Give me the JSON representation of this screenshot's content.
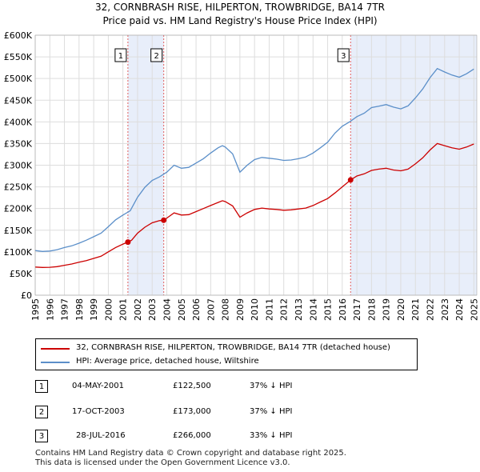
{
  "chart_data": {
    "type": "line",
    "title": "32, CORNBRASH RISE, HILPERTON, TROWBRIDGE, BA14 7TR",
    "subtitle": "Price paid vs. HM Land Registry's House Price Index (HPI)",
    "x_ticks": [
      "1995",
      "1996",
      "1997",
      "1998",
      "1999",
      "2000",
      "2001",
      "2002",
      "2003",
      "2004",
      "2005",
      "2006",
      "2007",
      "2008",
      "2009",
      "2010",
      "2011",
      "2012",
      "2013",
      "2014",
      "2015",
      "2016",
      "2017",
      "2018",
      "2019",
      "2020",
      "2021",
      "2022",
      "2023",
      "2024",
      "2025"
    ],
    "y_ticks": [
      "£0",
      "£50K",
      "£100K",
      "£150K",
      "£200K",
      "£250K",
      "£300K",
      "£350K",
      "£400K",
      "£450K",
      "£500K",
      "£550K",
      "£600K"
    ],
    "y_tick_values": [
      0,
      50000,
      100000,
      150000,
      200000,
      250000,
      300000,
      350000,
      400000,
      450000,
      500000,
      550000,
      600000
    ],
    "xlim": [
      1995,
      2025.2
    ],
    "ylim": [
      0,
      600000
    ],
    "grid": true,
    "series": [
      {
        "name": "32, CORNBRASH RISE, HILPERTON, TROWBRIDGE, BA14 7TR (detached house)",
        "color": "#cc0000",
        "points": [
          [
            1995.0,
            65000
          ],
          [
            1995.5,
            64000
          ],
          [
            1996.0,
            64500
          ],
          [
            1996.5,
            66000
          ],
          [
            1997.0,
            69000
          ],
          [
            1997.5,
            72000
          ],
          [
            1998.0,
            76000
          ],
          [
            1998.5,
            80000
          ],
          [
            1999.0,
            85000
          ],
          [
            1999.5,
            90000
          ],
          [
            2000.0,
            100000
          ],
          [
            2000.5,
            110000
          ],
          [
            2001.0,
            118000
          ],
          [
            2001.34,
            122500
          ],
          [
            2001.6,
            127000
          ],
          [
            2002.0,
            143000
          ],
          [
            2002.5,
            157000
          ],
          [
            2003.0,
            167000
          ],
          [
            2003.5,
            172000
          ],
          [
            2003.79,
            173000
          ],
          [
            2004.0,
            178000
          ],
          [
            2004.5,
            190000
          ],
          [
            2005.0,
            185000
          ],
          [
            2005.5,
            186000
          ],
          [
            2006.0,
            193000
          ],
          [
            2006.5,
            200000
          ],
          [
            2007.0,
            207000
          ],
          [
            2007.5,
            214000
          ],
          [
            2007.8,
            218000
          ],
          [
            2008.0,
            216000
          ],
          [
            2008.5,
            206000
          ],
          [
            2009.0,
            180000
          ],
          [
            2009.5,
            190000
          ],
          [
            2010.0,
            198000
          ],
          [
            2010.5,
            201000
          ],
          [
            2011.0,
            199000
          ],
          [
            2011.5,
            198000
          ],
          [
            2012.0,
            196000
          ],
          [
            2012.5,
            197000
          ],
          [
            2013.0,
            199000
          ],
          [
            2013.5,
            201000
          ],
          [
            2014.0,
            207000
          ],
          [
            2014.5,
            215000
          ],
          [
            2015.0,
            223000
          ],
          [
            2015.5,
            236000
          ],
          [
            2016.0,
            250000
          ],
          [
            2016.57,
            266000
          ],
          [
            2017.0,
            275000
          ],
          [
            2017.5,
            280000
          ],
          [
            2018.0,
            288000
          ],
          [
            2018.5,
            291000
          ],
          [
            2019.0,
            293000
          ],
          [
            2019.5,
            289000
          ],
          [
            2020.0,
            287000
          ],
          [
            2020.5,
            291000
          ],
          [
            2021.0,
            303000
          ],
          [
            2021.5,
            317000
          ],
          [
            2022.0,
            335000
          ],
          [
            2022.5,
            350000
          ],
          [
            2023.0,
            345000
          ],
          [
            2023.5,
            340000
          ],
          [
            2024.0,
            337000
          ],
          [
            2024.5,
            342000
          ],
          [
            2025.0,
            349000
          ]
        ]
      },
      {
        "name": "HPI: Average price, detached house, Wiltshire",
        "color": "#5b8fc9",
        "points": [
          [
            1995.0,
            103000
          ],
          [
            1995.5,
            101000
          ],
          [
            1996.0,
            102000
          ],
          [
            1996.5,
            105000
          ],
          [
            1997.0,
            110000
          ],
          [
            1997.5,
            114000
          ],
          [
            1998.0,
            120000
          ],
          [
            1998.5,
            127000
          ],
          [
            1999.0,
            135000
          ],
          [
            1999.5,
            143000
          ],
          [
            2000.0,
            158000
          ],
          [
            2000.5,
            174000
          ],
          [
            2001.0,
            185000
          ],
          [
            2001.5,
            195000
          ],
          [
            2002.0,
            226000
          ],
          [
            2002.5,
            249000
          ],
          [
            2003.0,
            265000
          ],
          [
            2003.5,
            273000
          ],
          [
            2004.0,
            284000
          ],
          [
            2004.5,
            300000
          ],
          [
            2005.0,
            293000
          ],
          [
            2005.5,
            295000
          ],
          [
            2006.0,
            305000
          ],
          [
            2006.5,
            315000
          ],
          [
            2007.0,
            328000
          ],
          [
            2007.5,
            340000
          ],
          [
            2007.8,
            345000
          ],
          [
            2008.0,
            342000
          ],
          [
            2008.5,
            326000
          ],
          [
            2009.0,
            284000
          ],
          [
            2009.5,
            300000
          ],
          [
            2010.0,
            313000
          ],
          [
            2010.5,
            318000
          ],
          [
            2011.0,
            316000
          ],
          [
            2011.5,
            314000
          ],
          [
            2012.0,
            311000
          ],
          [
            2012.5,
            312000
          ],
          [
            2013.0,
            315000
          ],
          [
            2013.5,
            319000
          ],
          [
            2014.0,
            328000
          ],
          [
            2014.5,
            340000
          ],
          [
            2015.0,
            353000
          ],
          [
            2015.5,
            374000
          ],
          [
            2016.0,
            390000
          ],
          [
            2016.5,
            400000
          ],
          [
            2017.0,
            412000
          ],
          [
            2017.5,
            420000
          ],
          [
            2018.0,
            433000
          ],
          [
            2018.5,
            436000
          ],
          [
            2019.0,
            440000
          ],
          [
            2019.5,
            434000
          ],
          [
            2020.0,
            430000
          ],
          [
            2020.5,
            437000
          ],
          [
            2021.0,
            455000
          ],
          [
            2021.5,
            476000
          ],
          [
            2022.0,
            502000
          ],
          [
            2022.5,
            523000
          ],
          [
            2023.0,
            515000
          ],
          [
            2023.5,
            508000
          ],
          [
            2024.0,
            503000
          ],
          [
            2024.5,
            511000
          ],
          [
            2025.0,
            522000
          ]
        ]
      }
    ],
    "sales": [
      {
        "num": "1",
        "x": 2001.34,
        "value": 122500
      },
      {
        "num": "2",
        "x": 2003.79,
        "value": 173000
      },
      {
        "num": "3",
        "x": 2016.57,
        "value": 266000
      }
    ],
    "highlight_ranges": [
      [
        2001.34,
        2003.79
      ],
      [
        2016.57,
        2025.2
      ]
    ],
    "colors": {
      "highlight": "#e8eefa",
      "grid": "#dddddd",
      "vline": "#e06060"
    }
  },
  "legend": {
    "property_label": "32, CORNBRASH RISE, HILPERTON, TROWBRIDGE, BA14 7TR (detached house)",
    "hpi_label": "HPI: Average price, detached house, Wiltshire"
  },
  "sales_table": [
    {
      "num": "1",
      "date": "04-MAY-2001",
      "price": "£122,500",
      "hpi": "37% ↓ HPI"
    },
    {
      "num": "2",
      "date": "17-OCT-2003",
      "price": "£173,000",
      "hpi": "37% ↓ HPI"
    },
    {
      "num": "3",
      "date": "28-JUL-2016",
      "price": "£266,000",
      "hpi": "33% ↓ HPI"
    }
  ],
  "footer": {
    "line1": "Contains HM Land Registry data © Crown copyright and database right 2025.",
    "line2": "This data is licensed under the Open Government Licence v3.0."
  }
}
